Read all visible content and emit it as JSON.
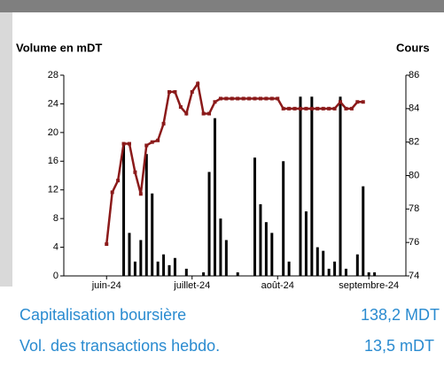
{
  "chart_data": {
    "type": "bar_line",
    "y_label": "Volume en mDT",
    "y2_label": "Cours",
    "categories": [
      null,
      null,
      null,
      null,
      null,
      null,
      null,
      "juin-24",
      null,
      null,
      null,
      null,
      null,
      null,
      null,
      null,
      null,
      null,
      null,
      null,
      null,
      null,
      "juillet-24",
      null,
      null,
      null,
      null,
      null,
      null,
      null,
      null,
      null,
      null,
      null,
      null,
      null,
      null,
      "août-24",
      null,
      null,
      null,
      null,
      null,
      null,
      null,
      null,
      null,
      null,
      null,
      null,
      null,
      null,
      null,
      "septembre-24",
      null,
      null,
      null,
      null,
      null,
      null
    ],
    "series": [
      {
        "name": "Volume",
        "type": "bar",
        "color": "#000000",
        "values": [
          0,
          0,
          0,
          0,
          0,
          0,
          0,
          0,
          0,
          0,
          18.5,
          6,
          2,
          5,
          17,
          11.5,
          2,
          3,
          1.5,
          2.5,
          0,
          1,
          0,
          0,
          0.5,
          14.5,
          22,
          8,
          5,
          0,
          0.5,
          0,
          0,
          16.5,
          10,
          7.5,
          6,
          0,
          16,
          2,
          0,
          25,
          9,
          25,
          4,
          3.5,
          1,
          2,
          25,
          1,
          0,
          3,
          12.5,
          0.5,
          0.5,
          0,
          0,
          0,
          0,
          0
        ]
      },
      {
        "name": "Cours",
        "type": "line",
        "axis": "y2",
        "color": "#8b1a1a",
        "values": [
          null,
          null,
          null,
          null,
          null,
          null,
          null,
          75.9,
          79.0,
          79.7,
          81.9,
          81.9,
          80.2,
          78.9,
          81.8,
          82.0,
          82.1,
          83.1,
          85.0,
          85.0,
          84.1,
          83.7,
          85.0,
          85.5,
          83.7,
          83.7,
          84.4,
          84.6,
          84.6,
          84.6,
          84.6,
          84.6,
          84.6,
          84.6,
          84.6,
          84.6,
          84.6,
          84.6,
          84.0,
          84.0,
          84.0,
          84.0,
          84.0,
          84.0,
          84.0,
          84.0,
          84.0,
          84.0,
          84.4,
          84.0,
          84.0,
          84.4,
          84.4,
          null,
          null,
          null,
          null,
          null,
          null,
          null
        ]
      }
    ],
    "ylim": [
      0,
      28
    ],
    "yticks": [
      0,
      4,
      8,
      12,
      16,
      20,
      24,
      28
    ],
    "y2lim": [
      74,
      86
    ],
    "y2ticks": [
      74,
      76,
      78,
      80,
      82,
      84,
      86
    ]
  },
  "info": [
    {
      "label": "Capitalisation boursière",
      "value": "138,2 MDT"
    },
    {
      "label": "Vol. des transactions hebdo.",
      "value": "13,5 mDT"
    }
  ]
}
